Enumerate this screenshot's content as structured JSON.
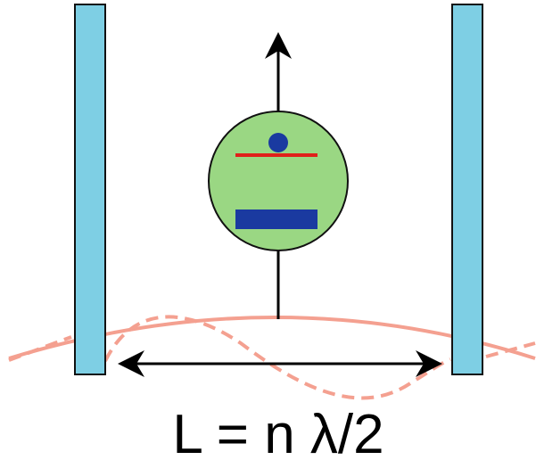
{
  "formula": "L = n λ/2"
}
